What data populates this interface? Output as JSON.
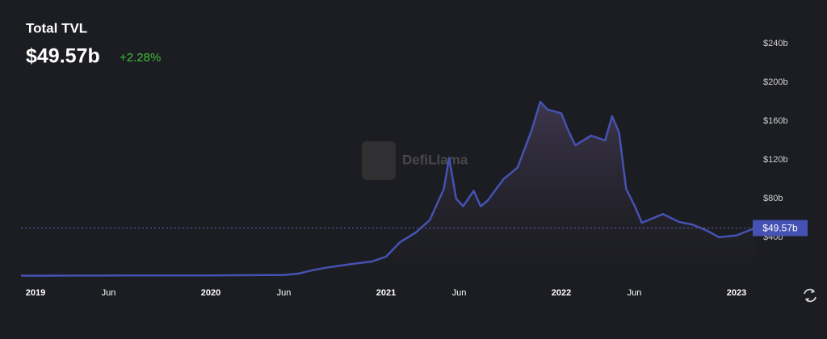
{
  "chart_data": {
    "type": "area",
    "title": "Total TVL",
    "headline": "$49.57b",
    "change": "+2.28%",
    "watermark": "DefiLlama",
    "color": "#4552b3",
    "change_color": "#3fbc38",
    "x": [
      2018.917,
      2019.0,
      2019.25,
      2019.5,
      2019.75,
      2020.0,
      2020.25,
      2020.42,
      2020.5,
      2020.58,
      2020.67,
      2020.75,
      2020.83,
      2020.92,
      2021.0,
      2021.08,
      2021.17,
      2021.25,
      2021.33,
      2021.36,
      2021.4,
      2021.44,
      2021.5,
      2021.54,
      2021.58,
      2021.67,
      2021.75,
      2021.83,
      2021.88,
      2021.92,
      2022.0,
      2022.04,
      2022.08,
      2022.17,
      2022.25,
      2022.29,
      2022.33,
      2022.37,
      2022.42,
      2022.46,
      2022.5,
      2022.58,
      2022.67,
      2022.75,
      2022.83,
      2022.9,
      2023.0,
      2023.106
    ],
    "values": [
      0.4,
      0.3,
      0.5,
      0.6,
      0.6,
      0.7,
      0.9,
      1.2,
      2.5,
      6,
      9,
      11,
      13,
      15,
      20,
      35,
      45,
      58,
      90,
      122,
      80,
      72,
      88,
      72,
      78,
      100,
      112,
      150,
      180,
      172,
      168,
      150,
      135,
      145,
      140,
      165,
      148,
      90,
      72,
      55,
      58,
      64,
      56,
      53,
      47,
      40,
      42,
      49.57
    ],
    "current_label": "$49.57b",
    "xlim": [
      2018.917,
      2023.106
    ],
    "xticks": [
      2019,
      {
        "value": 2019.417,
        "label": "Jun"
      },
      2020,
      {
        "value": 2020.417,
        "label": "Jun"
      },
      2021,
      {
        "value": 2021.417,
        "label": "Jun"
      },
      2022,
      {
        "value": 2022.417,
        "label": "Jun"
      },
      2023
    ],
    "ylim": [
      0,
      250
    ],
    "yticks": [
      {
        "value": 40,
        "label": "$40b"
      },
      {
        "value": 80,
        "label": "$80b"
      },
      {
        "value": 120,
        "label": "$120b"
      },
      {
        "value": 160,
        "label": "$160b"
      },
      {
        "value": 200,
        "label": "$200b"
      },
      {
        "value": 240,
        "label": "$240b"
      }
    ],
    "grid": false
  }
}
